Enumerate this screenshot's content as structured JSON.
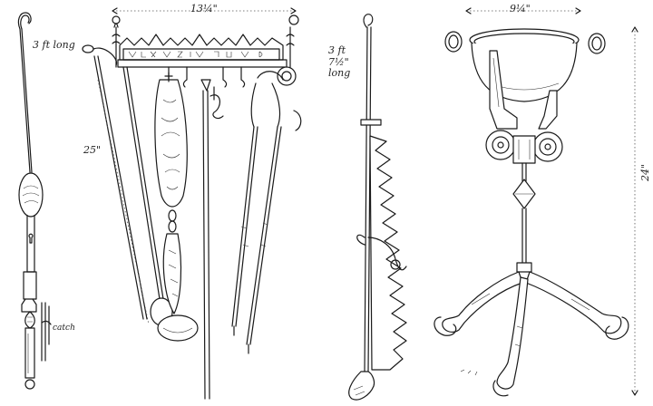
{
  "figure": {
    "style": "engraved line drawing of hearth tools",
    "ink_color": "#1a1a1a",
    "background_color": "#ffffff"
  },
  "labels": {
    "hook_length": "3 ft long",
    "rack_width": "13¼\"",
    "rack_height": "25\"",
    "spit_length": "3 ft 7½\" long",
    "stand_width": "9¼\"",
    "stand_height": "24\"",
    "catch_note": "catch"
  }
}
